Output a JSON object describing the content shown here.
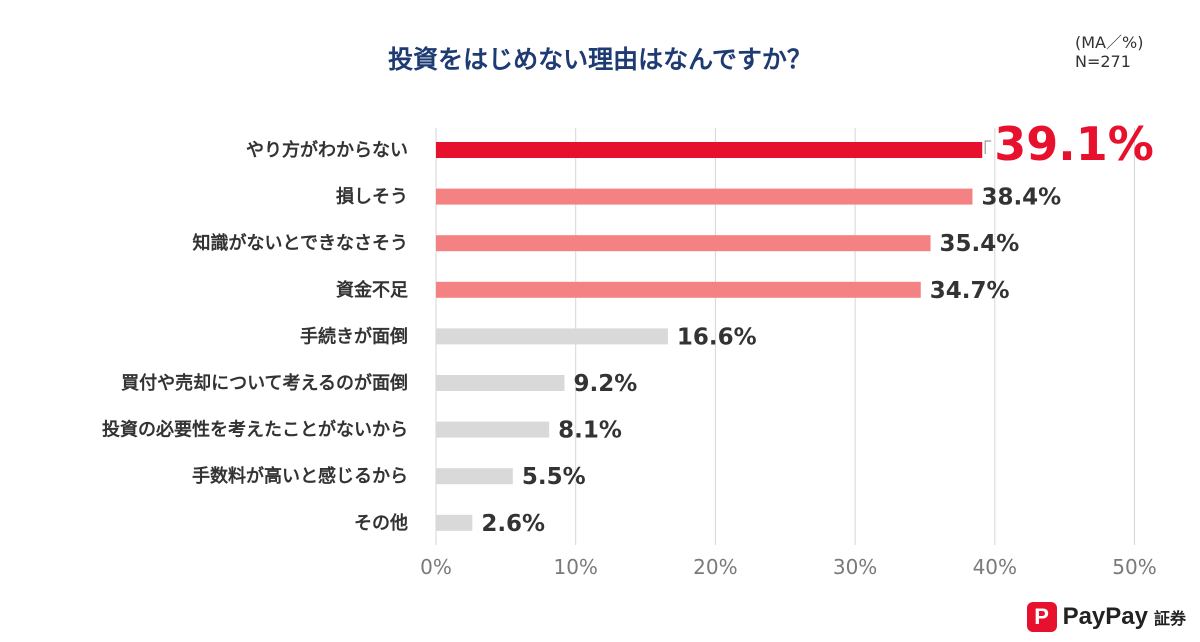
{
  "header": {
    "title": "投資をはじめない理由はなんですか？",
    "note_line1": "(MA／%)",
    "note_line2": "N=271"
  },
  "logo": {
    "mark": "P",
    "name": "PayPay",
    "suffix": "証券"
  },
  "chart_data": {
    "type": "bar",
    "orientation": "horizontal",
    "title": "投資をはじめない理由はなんですか？",
    "categories": [
      "やり方がわからない",
      "損しそう",
      "知識がないとできなさそう",
      "資金不足",
      "手続きが面倒",
      "買付や売却について考えるのが面倒",
      "投資の必要性を考えたことがないから",
      "手数料が高いと感じるから",
      "その他"
    ],
    "values": [
      39.1,
      38.4,
      35.4,
      34.7,
      16.6,
      9.2,
      8.1,
      5.5,
      2.6
    ],
    "value_labels": [
      "39.1%",
      "38.4%",
      "35.4%",
      "34.7%",
      "16.6%",
      "9.2%",
      "8.1%",
      "5.5%",
      "2.6%"
    ],
    "colors": [
      "#e8112d",
      "#f58282",
      "#f58282",
      "#f58282",
      "#d9d9d9",
      "#d9d9d9",
      "#d9d9d9",
      "#d9d9d9",
      "#d9d9d9"
    ],
    "xlim": [
      0,
      50
    ],
    "xticks": [
      "0%",
      "10%",
      "20%",
      "30%",
      "40%",
      "50%"
    ],
    "grid": true,
    "highlight_index": 0
  }
}
